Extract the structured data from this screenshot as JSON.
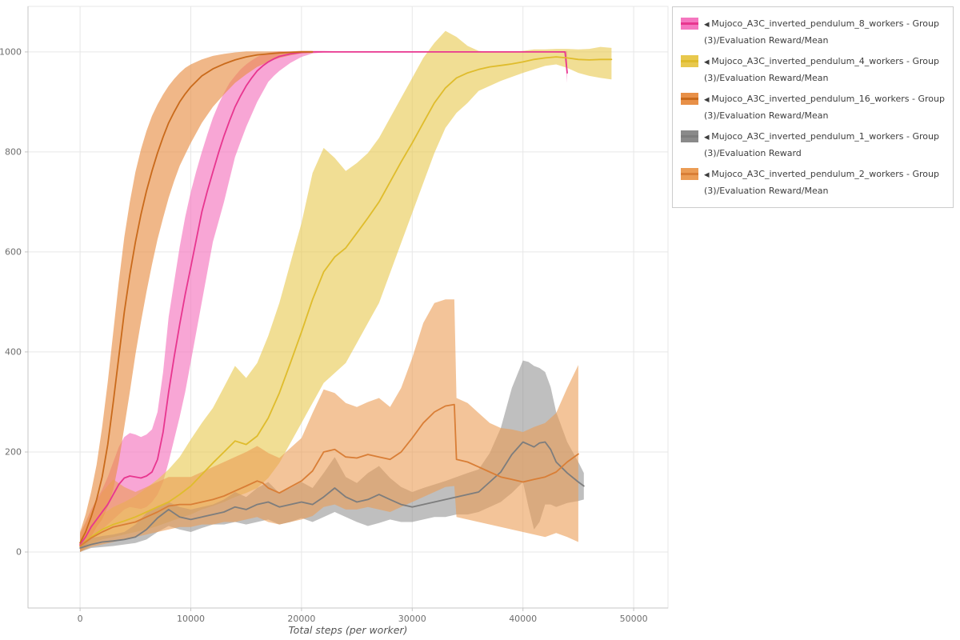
{
  "figure": {
    "xlabel": "Total steps (per worker)"
  },
  "legend": {
    "marker": "◀",
    "position": "top-right"
  },
  "axes": {
    "x_tick_labels": [
      "0",
      "10000",
      "20000",
      "30000",
      "40000",
      "50000"
    ],
    "y_tick_labels": [
      "0",
      "200",
      "400",
      "600",
      "800",
      "1000"
    ]
  },
  "colors": {
    "grid": "#e7e7e7",
    "axis": "#c4c4c4",
    "tick_text": "#6e6e6e",
    "legend_border": "#cccccc"
  },
  "chart_data": {
    "type": "line",
    "title": "",
    "xlabel": "Total steps (per worker)",
    "ylabel": "",
    "grid": true,
    "legend_position": "top-right",
    "xlim": [
      -4700,
      53100
    ],
    "ylim": [
      -112,
      1091
    ],
    "x_ticks": [
      0,
      10000,
      20000,
      30000,
      40000,
      50000
    ],
    "y_ticks": [
      0,
      200,
      400,
      600,
      800,
      1000
    ],
    "series": [
      {
        "name": "Mujoco_A3C_inverted_pendulum_8_workers - Group(3)/Evaluation Reward/Mean",
        "color": "#e8368f",
        "band_color": "#f576bf",
        "band_opacity": 0.65,
        "x": [
          0,
          500,
          1000,
          1500,
          2000,
          2500,
          3000,
          3500,
          4000,
          4500,
          5000,
          5500,
          6000,
          6500,
          7000,
          7500,
          8000,
          8500,
          9000,
          9500,
          10000,
          10500,
          11000,
          11500,
          12000,
          12500,
          13000,
          13500,
          14000,
          14500,
          15000,
          15500,
          16000,
          16500,
          17000,
          17500,
          18000,
          19000,
          20000,
          21000,
          22000,
          24000,
          26000,
          28000,
          30000,
          32000,
          34000,
          36000,
          38000,
          40000,
          42000,
          43800,
          44000
        ],
        "mean": [
          15,
          30,
          50,
          65,
          80,
          95,
          115,
          135,
          148,
          152,
          150,
          148,
          152,
          160,
          185,
          240,
          320,
          390,
          455,
          515,
          570,
          625,
          680,
          722,
          760,
          798,
          832,
          862,
          890,
          912,
          932,
          948,
          962,
          972,
          980,
          986,
          991,
          996,
          999,
          1000,
          1000,
          1000,
          1000,
          1000,
          1000,
          1000,
          1000,
          1000,
          1000,
          1000,
          1000,
          1000,
          958
        ],
        "low": [
          0,
          10,
          25,
          35,
          45,
          55,
          65,
          75,
          85,
          90,
          88,
          86,
          90,
          100,
          115,
          140,
          180,
          225,
          270,
          320,
          380,
          440,
          500,
          560,
          620,
          660,
          700,
          745,
          790,
          820,
          850,
          875,
          900,
          920,
          940,
          952,
          962,
          978,
          990,
          997,
          999,
          1000,
          1000,
          1000,
          1000,
          1000,
          1000,
          1000,
          1000,
          1000,
          1000,
          998,
          938
        ],
        "high": [
          35,
          60,
          85,
          105,
          125,
          150,
          180,
          210,
          230,
          238,
          235,
          230,
          235,
          245,
          280,
          360,
          470,
          540,
          610,
          670,
          720,
          762,
          800,
          835,
          868,
          895,
          918,
          938,
          952,
          965,
          975,
          983,
          990,
          995,
          998,
          1000,
          1001,
          1001,
          1002,
          1002,
          1002,
          1001,
          1001,
          1001,
          1001,
          1001,
          1001,
          1001,
          1001,
          1001,
          1001,
          1001,
          1002
        ]
      },
      {
        "name": "Mujoco_A3C_inverted_pendulum_4_workers - Group(3)/Evaluation Reward/Mean",
        "color": "#dfbc2c",
        "band_color": "#e8c84d",
        "band_opacity": 0.6,
        "x": [
          0,
          1000,
          2000,
          3000,
          4000,
          5000,
          6000,
          7000,
          8000,
          9000,
          10000,
          11000,
          12000,
          13000,
          14000,
          15000,
          16000,
          17000,
          18000,
          19000,
          20000,
          21000,
          22000,
          23000,
          24000,
          25000,
          26000,
          27000,
          28000,
          29000,
          30000,
          31000,
          32000,
          33000,
          34000,
          35000,
          36000,
          37000,
          38000,
          39000,
          40000,
          41000,
          42000,
          43000,
          44000,
          45000,
          46000,
          47000,
          48000
        ],
        "mean": [
          12,
          30,
          45,
          55,
          62,
          70,
          80,
          90,
          100,
          115,
          132,
          155,
          178,
          200,
          222,
          215,
          232,
          268,
          318,
          378,
          440,
          505,
          560,
          590,
          608,
          638,
          668,
          700,
          740,
          780,
          818,
          858,
          898,
          928,
          948,
          958,
          965,
          970,
          973,
          976,
          980,
          985,
          988,
          990,
          988,
          985,
          984,
          985,
          985
        ],
        "low": [
          0,
          15,
          25,
          30,
          35,
          40,
          45,
          52,
          60,
          68,
          75,
          85,
          92,
          100,
          110,
          118,
          128,
          148,
          178,
          218,
          258,
          298,
          338,
          358,
          378,
          418,
          458,
          498,
          558,
          618,
          678,
          738,
          798,
          848,
          878,
          898,
          922,
          932,
          942,
          950,
          958,
          965,
          972,
          975,
          968,
          958,
          952,
          948,
          945
        ],
        "high": [
          28,
          55,
          75,
          90,
          100,
          112,
          128,
          145,
          165,
          190,
          225,
          258,
          288,
          330,
          372,
          348,
          378,
          432,
          498,
          578,
          658,
          758,
          808,
          788,
          762,
          778,
          798,
          828,
          868,
          908,
          948,
          988,
          1018,
          1042,
          1030,
          1012,
          1002,
          1000,
          1000,
          1000,
          1002,
          1005,
          1005,
          1006,
          1006,
          1005,
          1006,
          1010,
          1008
        ]
      },
      {
        "name": "Mujoco_A3C_inverted_pendulum_16_workers - Group(3)/Evaluation Reward/Mean",
        "color": "#c96a1b",
        "band_color": "#e89048",
        "band_opacity": 0.65,
        "x": [
          0,
          500,
          1000,
          1500,
          2000,
          2500,
          3000,
          3500,
          4000,
          4500,
          5000,
          5500,
          6000,
          6500,
          7000,
          7500,
          8000,
          8500,
          9000,
          9500,
          10000,
          11000,
          12000,
          13000,
          14000,
          15000,
          16000,
          17000,
          18000,
          19000,
          20000,
          21000
        ],
        "mean": [
          18,
          40,
          70,
          105,
          150,
          215,
          300,
          390,
          480,
          555,
          620,
          675,
          722,
          762,
          798,
          830,
          858,
          880,
          900,
          916,
          930,
          952,
          966,
          976,
          984,
          990,
          994,
          996,
          998,
          999,
          1000,
          1000
        ],
        "low": [
          0,
          15,
          30,
          50,
          65,
          90,
          125,
          180,
          250,
          320,
          395,
          460,
          520,
          575,
          625,
          668,
          708,
          742,
          772,
          795,
          818,
          858,
          890,
          915,
          938,
          955,
          970,
          980,
          988,
          993,
          997,
          998
        ],
        "high": [
          40,
          75,
          120,
          175,
          250,
          340,
          440,
          540,
          630,
          700,
          760,
          805,
          842,
          872,
          895,
          915,
          932,
          946,
          958,
          968,
          975,
          985,
          992,
          996,
          999,
          1001,
          1001,
          1001,
          1001,
          1001,
          1002,
          1002
        ]
      },
      {
        "name": "Mujoco_A3C_inverted_pendulum_1_workers - Group(3)/Evaluation Reward",
        "color": "#7d7d7d",
        "band_color": "#8a8a8a",
        "band_opacity": 0.55,
        "x": [
          0,
          1000,
          2000,
          3000,
          4000,
          5000,
          6000,
          7000,
          8000,
          9000,
          10000,
          11000,
          12000,
          13000,
          14000,
          15000,
          16000,
          17000,
          18000,
          19000,
          20000,
          21000,
          22000,
          23000,
          24000,
          25000,
          26000,
          27000,
          28000,
          29000,
          30000,
          31000,
          32000,
          33000,
          34000,
          35000,
          36000,
          37000,
          38000,
          39000,
          40000,
          40500,
          41000,
          41500,
          42000,
          42500,
          43000,
          44000,
          45000,
          45500
        ],
        "mean": [
          8,
          15,
          20,
          22,
          25,
          30,
          45,
          68,
          85,
          70,
          65,
          70,
          75,
          80,
          90,
          85,
          95,
          100,
          90,
          95,
          100,
          95,
          110,
          128,
          110,
          100,
          105,
          115,
          105,
          95,
          90,
          95,
          100,
          105,
          110,
          115,
          120,
          140,
          160,
          195,
          220,
          215,
          210,
          218,
          220,
          205,
          180,
          158,
          140,
          132
        ],
        "low": [
          0,
          8,
          10,
          12,
          15,
          18,
          25,
          40,
          52,
          45,
          40,
          48,
          55,
          55,
          60,
          55,
          60,
          65,
          55,
          60,
          68,
          60,
          70,
          80,
          70,
          60,
          52,
          58,
          65,
          60,
          60,
          65,
          70,
          70,
          75,
          75,
          80,
          90,
          100,
          118,
          140,
          90,
          45,
          60,
          95,
          95,
          90,
          98,
          102,
          105
        ],
        "high": [
          20,
          28,
          32,
          35,
          40,
          55,
          78,
          92,
          100,
          90,
          85,
          90,
          95,
          105,
          120,
          110,
          128,
          140,
          118,
          128,
          140,
          128,
          158,
          190,
          150,
          138,
          158,
          172,
          148,
          130,
          120,
          128,
          135,
          142,
          150,
          158,
          165,
          198,
          248,
          328,
          383,
          380,
          372,
          368,
          360,
          330,
          280,
          220,
          180,
          158
        ]
      },
      {
        "name": "Mujoco_A3C_inverted_pendulum_2_workers - Group(3)/Evaluation Reward/Mean",
        "color": "#d97e36",
        "band_color": "#eb9c55",
        "band_opacity": 0.6,
        "x": [
          0,
          1000,
          2000,
          3000,
          4000,
          5000,
          6000,
          7000,
          8000,
          9000,
          10000,
          11000,
          12000,
          13000,
          14000,
          15000,
          16000,
          16500,
          17000,
          18000,
          19000,
          20000,
          21000,
          22000,
          23000,
          24000,
          25000,
          26000,
          27000,
          28000,
          29000,
          30000,
          31000,
          32000,
          33000,
          33800,
          34000,
          35000,
          36000,
          37000,
          38000,
          39000,
          40000,
          41000,
          42000,
          43000,
          44000,
          45000
        ],
        "mean": [
          12,
          28,
          40,
          50,
          55,
          60,
          70,
          80,
          92,
          95,
          95,
          100,
          105,
          112,
          122,
          132,
          142,
          138,
          128,
          118,
          130,
          142,
          162,
          200,
          205,
          190,
          188,
          195,
          190,
          185,
          200,
          228,
          258,
          280,
          292,
          295,
          185,
          180,
          170,
          160,
          150,
          145,
          140,
          145,
          150,
          160,
          180,
          196
        ],
        "low": [
          0,
          10,
          15,
          20,
          25,
          30,
          35,
          40,
          45,
          50,
          50,
          55,
          55,
          60,
          60,
          65,
          70,
          65,
          60,
          55,
          60,
          65,
          72,
          90,
          95,
          85,
          85,
          90,
          85,
          80,
          90,
          100,
          110,
          120,
          130,
          132,
          70,
          65,
          60,
          55,
          50,
          45,
          40,
          35,
          30,
          38,
          30,
          20
        ],
        "high": [
          38,
          80,
          120,
          145,
          130,
          120,
          130,
          140,
          150,
          150,
          150,
          160,
          170,
          180,
          190,
          200,
          212,
          205,
          198,
          188,
          208,
          228,
          278,
          325,
          318,
          298,
          290,
          300,
          308,
          290,
          328,
          388,
          458,
          498,
          505,
          505,
          308,
          298,
          278,
          258,
          248,
          245,
          240,
          250,
          258,
          278,
          328,
          374
        ]
      }
    ]
  }
}
